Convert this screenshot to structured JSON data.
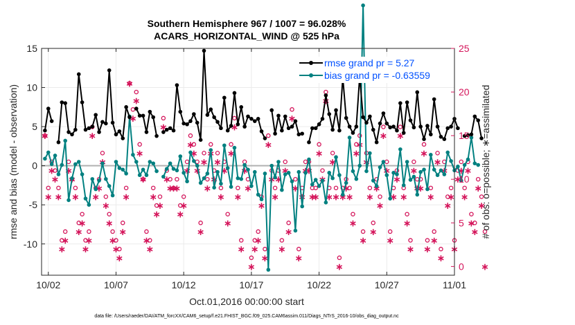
{
  "chart_data": {
    "type": "line",
    "title_line1": "Southern Hemisphere 967 / 1007 = 96.028%",
    "title_line2": "ACARS_HORIZONTAL_WIND @ 525 hPa",
    "ylabel_left": "rmse and bias (model - observation)",
    "ylabel_right": "# of obs: o=possible; ∗=assimilated",
    "xlabel": "Oct.01,2016 00:00:00 start",
    "footer": "data file: /Users/raeder/DAI/ATM_forcXX/CAM6_setup/f.e21.FHIST_BGC.f09_025.CAM6assim.011/Diags_NTrS_2016-10/obs_diag_output.nc",
    "xlim": [
      0.75,
      31.25
    ],
    "ylim_left": [
      -14,
      15
    ],
    "ylim_right": [
      -1,
      25
    ],
    "x_ticks": [
      1.25,
      6.25,
      11.25,
      16.25,
      21.25,
      26.25,
      31.25
    ],
    "x_tick_labels": [
      "10/02",
      "10/07",
      "10/12",
      "10/17",
      "10/22",
      "10/27",
      "11/01"
    ],
    "y_ticks_left": [
      -10,
      -5,
      0,
      5,
      10,
      15
    ],
    "y_tick_labels_left": [
      "-10",
      "-5",
      "0",
      "5",
      "10",
      "15"
    ],
    "y_ticks_right": [
      0,
      5,
      10,
      15,
      20,
      25
    ],
    "y_tick_labels_right": [
      "0",
      "5",
      "10",
      "15",
      "20",
      "25"
    ],
    "colors": {
      "rmse": "#000000",
      "bias": "#008080",
      "obs": "#d4145a",
      "zero_line": "#b0b0b0",
      "grid": "#ebebeb",
      "legend_text": "#0050ff"
    },
    "series": [
      {
        "name": "rmse",
        "legend": "rmse grand pr = 5.27",
        "values": [
          4.5,
          7.3,
          5.7,
          null,
          3.0,
          8.1,
          8.0,
          4.3,
          4.0,
          4.6,
          11.7,
          8.1,
          4.6,
          4.8,
          5.0,
          6.5,
          4.3,
          5.6,
          5.4,
          12.2,
          5.5,
          4.0,
          4.4,
          3.5,
          7.5,
          6.2,
          null,
          7.3,
          6.4,
          6.4,
          4.3,
          6.9,
          6.2,
          3.8,
          null,
          4.3,
          4.6,
          4.8,
          4.5,
          10.3,
          6.9,
          5.4,
          5.3,
          5.7,
          6.6,
          5.5,
          3.3,
          14.7,
          6.5,
          7.2,
          6.2,
          5.6,
          4.8,
          8.7,
          4.5,
          5.1,
          9.3,
          5.3,
          7.5,
          5.0,
          6.3,
          6.0,
          5.7,
          6.0,
          4.4,
          3.5,
          null,
          7.1,
          4.1,
          6.4,
          4.5,
          6.3,
          4.8,
          5.0,
          5.7,
          4.0,
          4.1,
          null,
          3.0,
          4.8,
          4.8,
          5.3,
          6.0,
          9.0,
          6.6,
          4.6,
          7.1,
          4.5,
          11.3,
          6.1,
          5.0,
          4.2,
          5.0,
          11.4,
          6.2,
          5.5,
          6.3,
          4.6,
          3.0,
          5.4,
          6.7,
          5.4,
          4.9,
          5.0,
          4.5,
          8.0,
          4.2,
          8.1,
          5.8,
          4.9,
          9.4,
          5.0,
          3.4,
          5.1,
          4.0,
          8.5,
          5.0,
          3.7,
          3.4,
          4.8,
          5.0,
          6.0,
          4.8,
          null,
          3.8,
          3.9,
          4.0,
          6.3,
          5.8,
          3.5
        ]
      },
      {
        "name": "bias",
        "legend": "bias grand pr = -0.63559",
        "values": [
          0.9,
          1.7,
          0.2,
          1.3,
          -1.1,
          0.1,
          3.2,
          -4.4,
          -1.6,
          0.2,
          0.5,
          -1.1,
          -4.2,
          -5.0,
          -1.7,
          -3.0,
          -1.9,
          0.3,
          -1.7,
          -2.6,
          -3.8,
          0.5,
          -0.3,
          -0.5,
          -1.0,
          6.3,
          1.4,
          0.5,
          -1.2,
          -0.5,
          -1.2,
          0.5,
          0.3,
          -0.7,
          null,
          -1.4,
          -0.4,
          0.3,
          -0.4,
          -0.6,
          1.2,
          -0.9,
          -2.0,
          1.7,
          0.6,
          0.0,
          -2.2,
          -1.6,
          -1.0,
          2.0,
          -2.8,
          -0.8,
          -2.3,
          2.6,
          -0.3,
          -2.7,
          2.3,
          -1.6,
          -1.7,
          0.1,
          -0.5,
          -2.6,
          -0.8,
          -3.7,
          -4.3,
          -1.0,
          -13.3,
          0.0,
          -1.5,
          0.5,
          -3.1,
          -1.1,
          -0.9,
          -2.0,
          -8.3,
          -0.8,
          -5.2,
          -0.9,
          0.8,
          -2.4,
          -1.8,
          -2.6,
          -1.9,
          -4.7,
          -0.9,
          -1.6,
          1.1,
          -1.2,
          -3.7,
          -2.2,
          3.6,
          -0.7,
          -1.7,
          0.0,
          20.5,
          -0.7,
          1.6,
          -1.9,
          -2.6,
          -0.2,
          0.5,
          -1.2,
          -4.2,
          -0.9,
          -1.1,
          2.1,
          -2.5,
          0.5,
          -1.8,
          -1.4,
          -3.7,
          -0.8,
          -0.5,
          -3.0,
          1.4,
          -0.5,
          -1.2,
          -0.6,
          -1.1,
          1.7,
          0.6,
          -0.6,
          -0.1,
          -1.9,
          0.1,
          0.8,
          3.6,
          0.3,
          0.1
        ]
      }
    ],
    "obs_possible_count": [
      15,
      9,
      12,
      11,
      9,
      3,
      4,
      12,
      10,
      9,
      5,
      6,
      3,
      4,
      16,
      9,
      10,
      13,
      8,
      6,
      4,
      3,
      2,
      5,
      9,
      21,
      18,
      20,
      14,
      10,
      4,
      3,
      9,
      7,
      8,
      17,
      11,
      10,
      9,
      10,
      7,
      8,
      12,
      15,
      14,
      12,
      5,
      13,
      10,
      14,
      11,
      13,
      9,
      12,
      6,
      14,
      17,
      9,
      3,
      12,
      10,
      1,
      3,
      4,
      8,
      2,
      15,
      11,
      9,
      11,
      3,
      12,
      5,
      18,
      10,
      2,
      9,
      12,
      12,
      9,
      9,
      14,
      11,
      20,
      9,
      13,
      9,
      1,
      9,
      10,
      9,
      6,
      14,
      15,
      4,
      13,
      9,
      5,
      10,
      8,
      16,
      12,
      4,
      9,
      11,
      16,
      9,
      6,
      3,
      12,
      10,
      10,
      14,
      3,
      9,
      4,
      13,
      2,
      12,
      8,
      9,
      3,
      11,
      12,
      9,
      12,
      6,
      5,
      10,
      8,
      4
    ],
    "obs_assim_count": [
      15,
      8,
      11,
      10,
      8,
      2,
      3,
      11,
      10,
      8,
      4,
      5,
      2,
      3,
      15,
      8,
      9,
      12,
      7,
      5,
      3,
      2,
      1,
      4,
      8,
      21,
      17,
      19,
      13,
      10,
      3,
      2,
      8,
      6,
      7,
      16,
      10,
      9,
      9,
      9,
      6,
      7,
      11,
      14,
      13,
      11,
      4,
      12,
      9,
      13,
      10,
      12,
      8,
      11,
      5,
      13,
      16,
      8,
      2,
      11,
      9,
      0,
      2,
      3,
      7,
      1,
      14,
      10,
      8,
      10,
      2,
      11,
      4,
      17,
      9,
      1,
      8,
      11,
      11,
      8,
      8,
      13,
      10,
      19,
      8,
      12,
      8,
      0,
      8,
      9,
      8,
      5,
      13,
      14,
      3,
      12,
      8,
      4,
      9,
      7,
      15,
      11,
      3,
      8,
      10,
      15,
      8,
      5,
      2,
      11,
      9,
      9,
      13,
      2,
      8,
      3,
      12,
      1,
      11,
      7,
      8,
      2,
      10,
      11,
      8,
      11,
      5,
      4,
      9,
      7,
      0
    ]
  }
}
